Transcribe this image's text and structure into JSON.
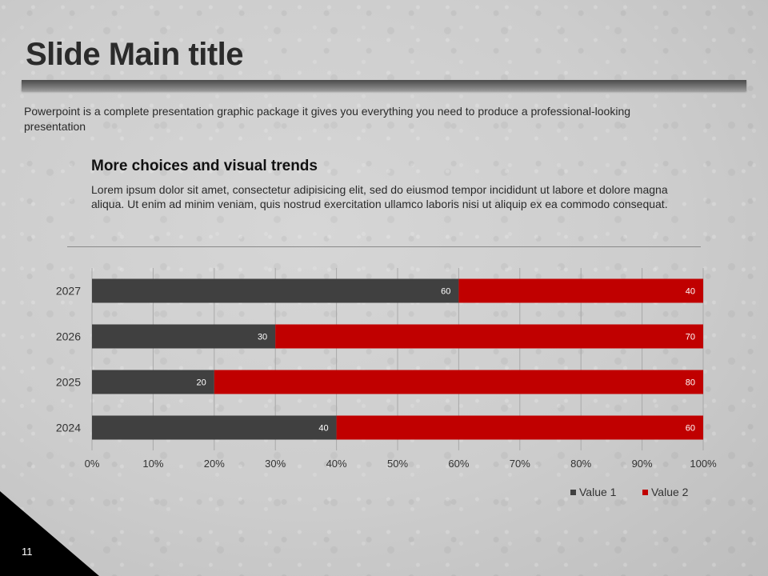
{
  "slide": {
    "title": "Slide Main title",
    "subtitle": "Powerpoint is a complete presentation graphic package it gives you everything you need to produce a professional-looking presentation",
    "heading": "More choices and visual trends",
    "body": "Lorem ipsum dolor sit amet, consectetur adipisicing elit, sed do eiusmod tempor incididunt ut labore et dolore magna aliqua. Ut enim ad minim veniam, quis nostrud exercitation ullamco laboris nisi ut aliquip ex ea commodo consequat.",
    "page_number": "11"
  },
  "colors": {
    "value1": "#404040",
    "value2": "#c00000"
  },
  "chart_data": {
    "type": "bar",
    "orientation": "horizontal",
    "stacked": true,
    "percent_stacked": true,
    "categories": [
      "2024",
      "2025",
      "2026",
      "2027"
    ],
    "series": [
      {
        "name": "Value  1",
        "values": [
          40,
          20,
          30,
          60
        ]
      },
      {
        "name": "Value  2",
        "values": [
          60,
          80,
          70,
          40
        ]
      }
    ],
    "xlim": [
      0,
      100
    ],
    "x_ticks": [
      "0%",
      "10%",
      "20%",
      "30%",
      "40%",
      "50%",
      "60%",
      "70%",
      "80%",
      "90%",
      "100%"
    ],
    "grid": true,
    "legend": "bottom-right",
    "data_labels": true
  }
}
